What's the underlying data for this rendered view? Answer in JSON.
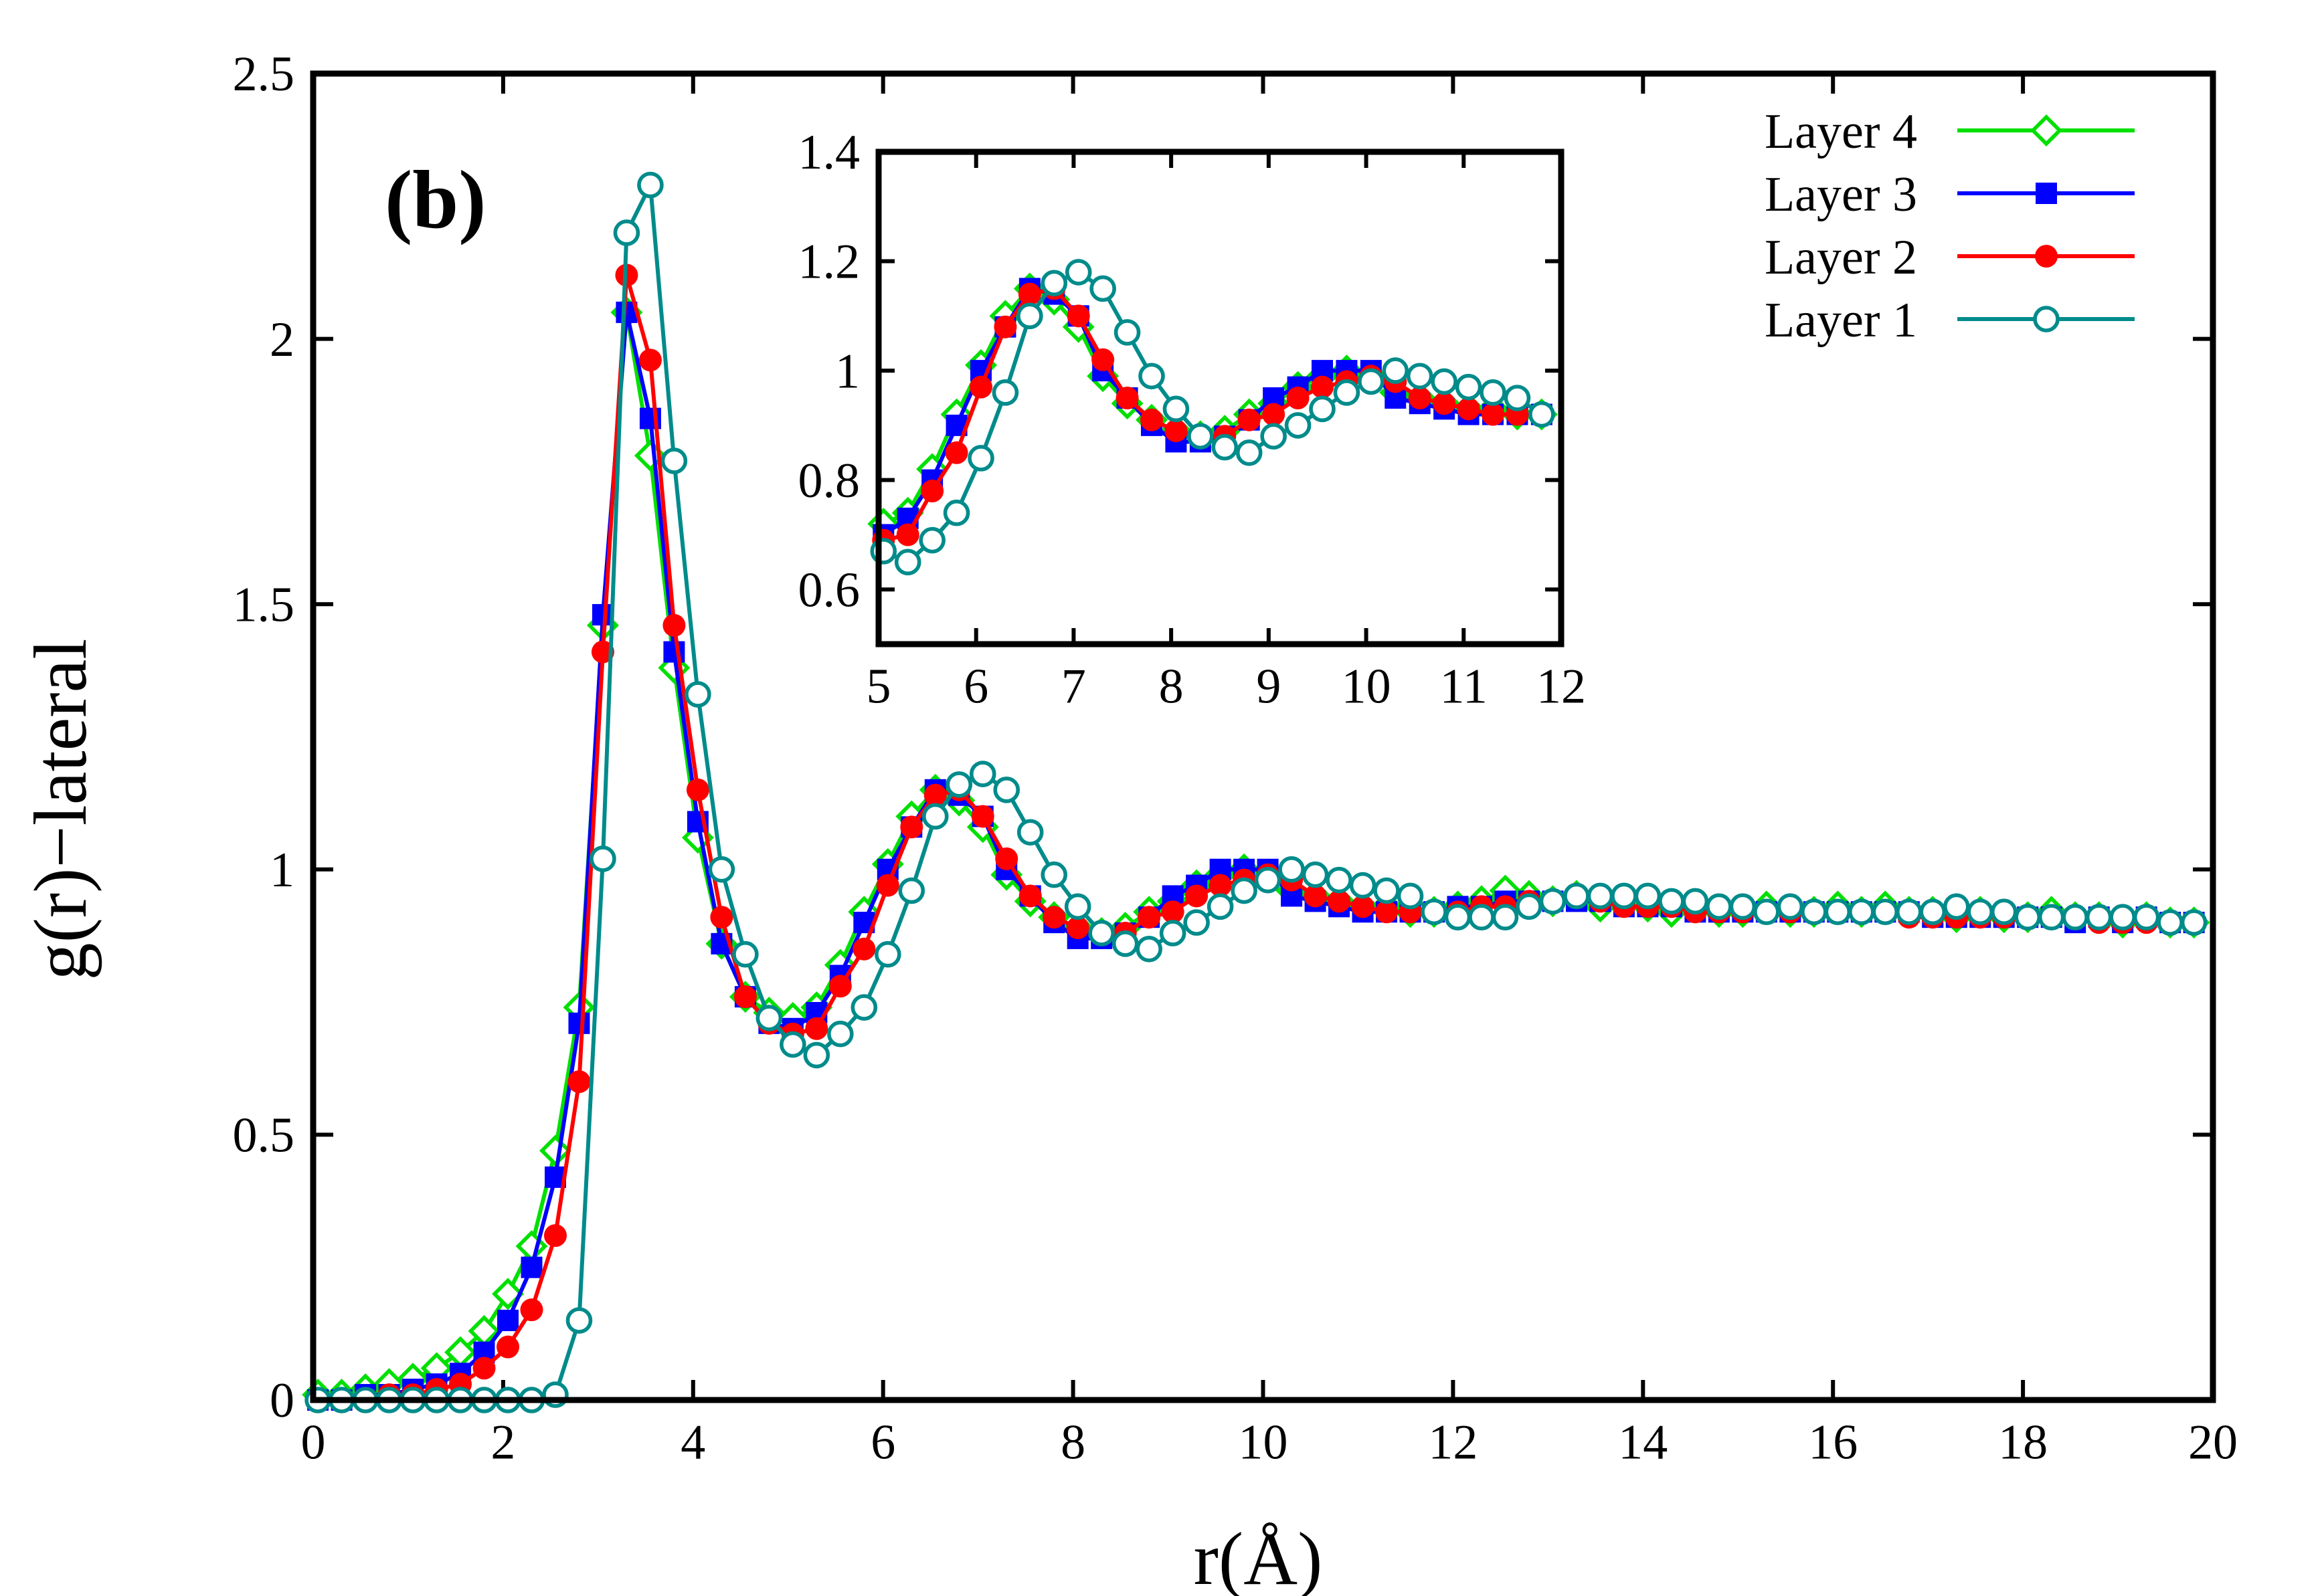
{
  "panel_label": "(b)",
  "chart_data": [
    {
      "type": "line",
      "role": "main",
      "xlabel": "r(Å)",
      "ylabel": "g(r)−lateral",
      "xlim": [
        0,
        20
      ],
      "ylim": [
        0,
        2.5
      ],
      "xticks": [
        0,
        2,
        4,
        6,
        8,
        10,
        12,
        14,
        16,
        18,
        20
      ],
      "xtick_labels": [
        "0",
        "2",
        "4",
        "6",
        "8",
        "10",
        "12",
        "14",
        "16",
        "18",
        "20"
      ],
      "yticks": [
        0,
        0.5,
        1,
        1.5,
        2,
        2.5
      ],
      "ytick_labels": [
        "0",
        "0.5",
        "1",
        "1.5",
        "2",
        "2.5"
      ],
      "legend": "top-right",
      "series": [
        {
          "name": "Layer 4",
          "color": "#00e000",
          "marker": "diamond-open",
          "x": [
            0.05,
            0.3,
            0.55,
            0.8,
            1.05,
            1.3,
            1.55,
            1.8,
            2.05,
            2.3,
            2.55,
            2.8,
            3.05,
            3.3,
            3.55,
            3.8,
            4.05,
            4.3,
            4.55,
            4.8,
            5.05,
            5.3,
            5.55,
            5.8,
            6.05,
            6.3,
            6.55,
            6.8,
            7.05,
            7.3,
            7.55,
            7.8,
            8.05,
            8.3,
            8.55,
            8.8,
            9.05,
            9.3,
            9.55,
            9.8,
            10.05,
            10.3,
            10.55,
            10.8,
            11.05,
            11.3,
            11.55,
            11.8,
            12.05,
            12.3,
            12.55,
            12.8,
            13.05,
            13.3,
            13.55,
            13.8,
            14.05,
            14.3,
            14.55,
            14.8,
            15.05,
            15.3,
            15.55,
            15.8,
            16.05,
            16.3,
            16.55,
            16.8,
            17.05,
            17.3,
            17.55,
            17.8,
            18.05,
            18.3,
            18.55,
            18.8,
            19.05,
            19.3,
            19.55,
            19.8
          ],
          "y": [
            0.01,
            0.01,
            0.02,
            0.03,
            0.04,
            0.06,
            0.09,
            0.13,
            0.2,
            0.29,
            0.47,
            0.74,
            1.46,
            2.05,
            1.78,
            1.38,
            1.06,
            0.86,
            0.76,
            0.73,
            0.72,
            0.74,
            0.82,
            0.92,
            1.01,
            1.1,
            1.15,
            1.13,
            1.08,
            0.99,
            0.94,
            0.91,
            0.89,
            0.88,
            0.89,
            0.92,
            0.94,
            0.97,
            0.99,
            1.0,
            0.99,
            0.96,
            0.95,
            0.94,
            0.93,
            0.93,
            0.92,
            0.92,
            0.93,
            0.94,
            0.96,
            0.95,
            0.94,
            0.95,
            0.93,
            0.94,
            0.93,
            0.92,
            0.93,
            0.92,
            0.92,
            0.93,
            0.92,
            0.92,
            0.93,
            0.92,
            0.93,
            0.92,
            0.92,
            0.91,
            0.92,
            0.91,
            0.91,
            0.92,
            0.91,
            0.91,
            0.9,
            0.91,
            0.9,
            0.9
          ]
        },
        {
          "name": "Layer 3",
          "color": "#0000ff",
          "marker": "square-filled",
          "x": [
            0.05,
            0.3,
            0.55,
            0.8,
            1.05,
            1.3,
            1.55,
            1.8,
            2.05,
            2.3,
            2.55,
            2.8,
            3.05,
            3.3,
            3.55,
            3.8,
            4.05,
            4.3,
            4.55,
            4.8,
            5.05,
            5.3,
            5.55,
            5.8,
            6.05,
            6.3,
            6.55,
            6.8,
            7.05,
            7.3,
            7.55,
            7.8,
            8.05,
            8.3,
            8.55,
            8.8,
            9.05,
            9.3,
            9.55,
            9.8,
            10.05,
            10.3,
            10.55,
            10.8,
            11.05,
            11.3,
            11.55,
            11.8,
            12.05,
            12.3,
            12.55,
            12.8,
            13.05,
            13.3,
            13.55,
            13.8,
            14.05,
            14.3,
            14.55,
            14.8,
            15.05,
            15.3,
            15.55,
            15.8,
            16.05,
            16.3,
            16.55,
            16.8,
            17.05,
            17.3,
            17.55,
            17.8,
            18.05,
            18.3,
            18.55,
            18.8,
            19.05,
            19.3,
            19.55,
            19.8
          ],
          "y": [
            0.0,
            0.0,
            0.01,
            0.01,
            0.02,
            0.03,
            0.05,
            0.09,
            0.15,
            0.25,
            0.42,
            0.71,
            1.48,
            2.05,
            1.85,
            1.41,
            1.09,
            0.86,
            0.76,
            0.71,
            0.7,
            0.73,
            0.8,
            0.9,
            1.0,
            1.08,
            1.15,
            1.14,
            1.1,
            1.0,
            0.95,
            0.9,
            0.87,
            0.87,
            0.88,
            0.91,
            0.95,
            0.97,
            1.0,
            1.0,
            1.0,
            0.95,
            0.94,
            0.93,
            0.92,
            0.92,
            0.92,
            0.92,
            0.93,
            0.93,
            0.94,
            0.94,
            0.94,
            0.94,
            0.94,
            0.93,
            0.93,
            0.93,
            0.92,
            0.92,
            0.92,
            0.92,
            0.92,
            0.92,
            0.92,
            0.92,
            0.92,
            0.92,
            0.91,
            0.91,
            0.91,
            0.91,
            0.91,
            0.91,
            0.9,
            0.91,
            0.9,
            0.91,
            0.9,
            0.9
          ]
        },
        {
          "name": "Layer 2",
          "color": "#ff0000",
          "marker": "circle-filled",
          "x": [
            0.05,
            0.3,
            0.55,
            0.8,
            1.05,
            1.3,
            1.55,
            1.8,
            2.05,
            2.3,
            2.55,
            2.8,
            3.05,
            3.3,
            3.55,
            3.8,
            4.05,
            4.3,
            4.55,
            4.8,
            5.05,
            5.3,
            5.55,
            5.8,
            6.05,
            6.3,
            6.55,
            6.8,
            7.05,
            7.3,
            7.55,
            7.8,
            8.05,
            8.3,
            8.55,
            8.8,
            9.05,
            9.3,
            9.55,
            9.8,
            10.05,
            10.3,
            10.55,
            10.8,
            11.05,
            11.3,
            11.55,
            11.8,
            12.05,
            12.3,
            12.55,
            12.8,
            13.05,
            13.3,
            13.55,
            13.8,
            14.05,
            14.3,
            14.55,
            14.8,
            15.05,
            15.3,
            15.55,
            15.8,
            16.05,
            16.3,
            16.55,
            16.8,
            17.05,
            17.3,
            17.55,
            17.8,
            18.05,
            18.3,
            18.55,
            18.8,
            19.05,
            19.3,
            19.55,
            19.8
          ],
          "y": [
            0.0,
            0.0,
            0.0,
            0.01,
            0.01,
            0.02,
            0.03,
            0.06,
            0.1,
            0.17,
            0.31,
            0.6,
            1.41,
            2.12,
            1.96,
            1.46,
            1.15,
            0.91,
            0.76,
            0.71,
            0.69,
            0.7,
            0.78,
            0.85,
            0.97,
            1.08,
            1.14,
            1.15,
            1.1,
            1.02,
            0.95,
            0.91,
            0.89,
            0.88,
            0.88,
            0.91,
            0.92,
            0.95,
            0.97,
            0.98,
            0.99,
            0.98,
            0.95,
            0.94,
            0.93,
            0.92,
            0.92,
            0.92,
            0.92,
            0.93,
            0.93,
            0.94,
            0.94,
            0.95,
            0.94,
            0.93,
            0.93,
            0.93,
            0.92,
            0.92,
            0.92,
            0.92,
            0.92,
            0.92,
            0.92,
            0.92,
            0.92,
            0.91,
            0.91,
            0.91,
            0.91,
            0.91,
            0.91,
            0.91,
            0.91,
            0.9,
            0.9,
            0.9,
            0.9,
            0.9
          ]
        },
        {
          "name": "Layer 1",
          "color": "#008b8b",
          "marker": "circle-open",
          "x": [
            0.05,
            0.3,
            0.55,
            0.8,
            1.05,
            1.3,
            1.55,
            1.8,
            2.05,
            2.3,
            2.55,
            2.8,
            3.05,
            3.3,
            3.55,
            3.8,
            4.05,
            4.3,
            4.55,
            4.8,
            5.05,
            5.3,
            5.55,
            5.8,
            6.05,
            6.3,
            6.55,
            6.8,
            7.05,
            7.3,
            7.55,
            7.8,
            8.05,
            8.3,
            8.55,
            8.8,
            9.05,
            9.3,
            9.55,
            9.8,
            10.05,
            10.3,
            10.55,
            10.8,
            11.05,
            11.3,
            11.55,
            11.8,
            12.05,
            12.3,
            12.55,
            12.8,
            13.05,
            13.3,
            13.55,
            13.8,
            14.05,
            14.3,
            14.55,
            14.8,
            15.05,
            15.3,
            15.55,
            15.8,
            16.05,
            16.3,
            16.55,
            16.8,
            17.05,
            17.3,
            17.55,
            17.8,
            18.05,
            18.3,
            18.55,
            18.8,
            19.05,
            19.3,
            19.55,
            19.8
          ],
          "y": [
            0.0,
            0.0,
            0.0,
            0.0,
            0.0,
            0.0,
            0.0,
            0.0,
            0.0,
            0.0,
            0.01,
            0.15,
            1.02,
            2.2,
            2.29,
            1.77,
            1.33,
            1.0,
            0.84,
            0.72,
            0.67,
            0.65,
            0.69,
            0.74,
            0.84,
            0.96,
            1.1,
            1.16,
            1.18,
            1.15,
            1.07,
            0.99,
            0.93,
            0.88,
            0.86,
            0.85,
            0.88,
            0.9,
            0.93,
            0.96,
            0.98,
            1.0,
            0.99,
            0.98,
            0.97,
            0.96,
            0.95,
            0.92,
            0.91,
            0.91,
            0.91,
            0.93,
            0.94,
            0.95,
            0.95,
            0.95,
            0.95,
            0.94,
            0.94,
            0.93,
            0.93,
            0.92,
            0.93,
            0.92,
            0.92,
            0.92,
            0.92,
            0.92,
            0.92,
            0.93,
            0.92,
            0.92,
            0.91,
            0.91,
            0.91,
            0.91,
            0.91,
            0.91,
            0.9,
            0.9
          ]
        }
      ]
    },
    {
      "type": "line",
      "role": "inset",
      "xlim": [
        5,
        12
      ],
      "ylim": [
        0.5,
        1.4
      ],
      "xticks": [
        5,
        6,
        7,
        8,
        9,
        10,
        11,
        12
      ],
      "xtick_labels": [
        "5",
        "6",
        "7",
        "8",
        "9",
        "10",
        "11",
        "12"
      ],
      "yticks": [
        0.6,
        0.8,
        1,
        1.2,
        1.4
      ],
      "ytick_labels": [
        "0.6",
        "0.8",
        "1",
        "1.2",
        "1.4"
      ],
      "series_source": "same series as main chart, restricted to 5 ≤ r ≤ 12"
    }
  ]
}
